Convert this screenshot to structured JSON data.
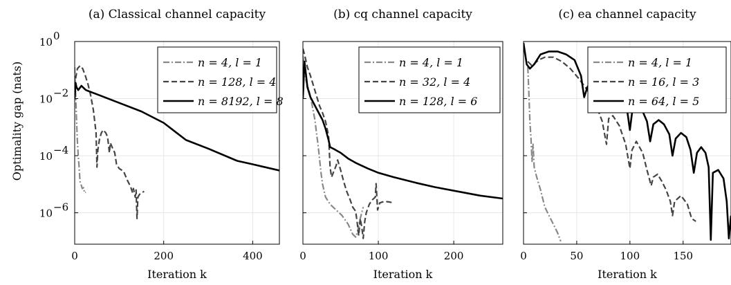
{
  "y_axis_label": "Optimality gap (nats)",
  "y_ticks": [
    {
      "value": 0,
      "label": "10"
    },
    {
      "value": -2,
      "label": "10"
    },
    {
      "value": -4,
      "label": "10"
    },
    {
      "value": -6,
      "label": "10"
    }
  ],
  "y_tick_exponents": [
    "0",
    "−2",
    "−4",
    "−6"
  ],
  "style": {
    "colors": {
      "light": "#888888",
      "mid": "#444444",
      "dark": "#000000",
      "grid": "#e6e6e6"
    }
  },
  "chart_data": [
    {
      "type": "line",
      "title": "(a) Classical channel capacity",
      "xlabel": "Iteration k",
      "ylabel": "Optimality gap (nats)",
      "yscale": "log",
      "xlim": [
        0,
        460
      ],
      "ylim_log10": [
        -7.1,
        0
      ],
      "xticks": [
        0,
        200,
        400
      ],
      "grid": true,
      "legend_position": "top-right",
      "series": [
        {
          "name": "n = 4, l = 1",
          "style": "dashdot",
          "color": "light",
          "points": [
            [
              0,
              -0.9
            ],
            [
              2,
              -1.8
            ],
            [
              4,
              -2.7
            ],
            [
              6,
              -3.5
            ],
            [
              8,
              -4.0
            ],
            [
              10,
              -4.4
            ],
            [
              12,
              -4.9
            ],
            [
              15,
              -5.05
            ],
            [
              17,
              -5.15
            ],
            [
              20,
              -5.12
            ],
            [
              22,
              -5.3
            ],
            [
              25,
              -5.28
            ]
          ]
        },
        {
          "name": "n = 128, l = 4",
          "style": "dashed",
          "color": "mid",
          "points": [
            [
              2,
              -1.3
            ],
            [
              6,
              -0.95
            ],
            [
              12,
              -0.85
            ],
            [
              18,
              -0.95
            ],
            [
              24,
              -1.2
            ],
            [
              30,
              -1.5
            ],
            [
              36,
              -1.9
            ],
            [
              42,
              -2.4
            ],
            [
              48,
              -3.2
            ],
            [
              50,
              -4.4
            ],
            [
              52,
              -3.8
            ],
            [
              56,
              -3.4
            ],
            [
              60,
              -3.2
            ],
            [
              64,
              -3.1
            ],
            [
              70,
              -3.2
            ],
            [
              74,
              -3.35
            ],
            [
              78,
              -3.9
            ],
            [
              80,
              -3.55
            ],
            [
              84,
              -3.7
            ],
            [
              90,
              -3.9
            ],
            [
              94,
              -4.3
            ],
            [
              100,
              -4.45
            ],
            [
              110,
              -4.55
            ],
            [
              118,
              -4.85
            ],
            [
              126,
              -5.1
            ],
            [
              130,
              -5.3
            ],
            [
              132,
              -5.15
            ],
            [
              136,
              -5.45
            ],
            [
              138,
              -5.2
            ],
            [
              140,
              -6.2
            ],
            [
              142,
              -5.45
            ],
            [
              146,
              -5.35
            ],
            [
              150,
              -5.3
            ],
            [
              156,
              -5.25
            ]
          ]
        },
        {
          "name": "n = 8192, l = 8",
          "style": "solid",
          "color": "dark",
          "points": [
            [
              0,
              -2.0
            ],
            [
              2,
              -1.45
            ],
            [
              4,
              -1.6
            ],
            [
              8,
              -1.7
            ],
            [
              15,
              -1.55
            ],
            [
              25,
              -1.7
            ],
            [
              50,
              -1.85
            ],
            [
              100,
              -2.15
            ],
            [
              150,
              -2.45
            ],
            [
              200,
              -2.85
            ],
            [
              250,
              -3.45
            ],
            [
              300,
              -3.75
            ],
            [
              365,
              -4.18
            ],
            [
              400,
              -4.3
            ],
            [
              460,
              -4.52
            ]
          ]
        }
      ]
    },
    {
      "type": "line",
      "title": "(b) cq channel capacity",
      "xlabel": "Iteration k",
      "yscale": "log",
      "xlim": [
        0,
        265
      ],
      "ylim_log10": [
        -7.1,
        0
      ],
      "xticks": [
        0,
        100,
        200
      ],
      "grid": true,
      "legend_position": "top-right",
      "series": [
        {
          "name": "n = 4, l = 1",
          "style": "dashdot",
          "color": "light",
          "points": [
            [
              0,
              -0.5
            ],
            [
              2,
              -0.9
            ],
            [
              4,
              -1.35
            ],
            [
              8,
              -1.7
            ],
            [
              12,
              -2.2
            ],
            [
              16,
              -2.75
            ],
            [
              18,
              -3.2
            ],
            [
              20,
              -3.6
            ],
            [
              22,
              -4.1
            ],
            [
              24,
              -4.6
            ],
            [
              26,
              -5.0
            ],
            [
              30,
              -5.45
            ],
            [
              36,
              -5.7
            ],
            [
              44,
              -5.9
            ],
            [
              52,
              -6.1
            ],
            [
              60,
              -6.4
            ],
            [
              66,
              -6.75
            ],
            [
              70,
              -6.85
            ],
            [
              72,
              -6.7
            ],
            [
              76,
              -6.2
            ],
            [
              80,
              -5.8
            ]
          ]
        },
        {
          "name": "n = 32, l = 4",
          "style": "dashed",
          "color": "mid",
          "points": [
            [
              0,
              -0.25
            ],
            [
              3,
              -0.55
            ],
            [
              6,
              -0.9
            ],
            [
              10,
              -1.2
            ],
            [
              14,
              -1.55
            ],
            [
              18,
              -1.9
            ],
            [
              22,
              -2.25
            ],
            [
              26,
              -2.5
            ],
            [
              30,
              -2.8
            ],
            [
              34,
              -3.3
            ],
            [
              36,
              -4.4
            ],
            [
              38,
              -4.75
            ],
            [
              44,
              -4.35
            ],
            [
              46,
              -4.15
            ],
            [
              50,
              -4.5
            ],
            [
              54,
              -4.9
            ],
            [
              58,
              -5.25
            ],
            [
              62,
              -5.5
            ],
            [
              66,
              -5.8
            ],
            [
              70,
              -5.95
            ],
            [
              72,
              -6.35
            ],
            [
              74,
              -6.8
            ],
            [
              76,
              -6.2
            ],
            [
              78,
              -6.5
            ],
            [
              80,
              -6.9
            ],
            [
              82,
              -6.3
            ],
            [
              84,
              -6.0
            ],
            [
              88,
              -5.7
            ],
            [
              92,
              -5.55
            ],
            [
              96,
              -5.45
            ],
            [
              97,
              -4.98
            ],
            [
              99,
              -5.9
            ],
            [
              102,
              -5.65
            ],
            [
              108,
              -5.6
            ],
            [
              114,
              -5.62
            ],
            [
              120,
              -5.65
            ]
          ]
        },
        {
          "name": "n = 128, l = 6",
          "style": "solid",
          "color": "dark",
          "points": [
            [
              0,
              -2.0
            ],
            [
              2,
              -0.7
            ],
            [
              4,
              -1.15
            ],
            [
              6,
              -1.6
            ],
            [
              10,
              -1.95
            ],
            [
              14,
              -2.15
            ],
            [
              18,
              -2.35
            ],
            [
              22,
              -2.55
            ],
            [
              26,
              -2.75
            ],
            [
              30,
              -3.05
            ],
            [
              34,
              -3.45
            ],
            [
              36,
              -3.7
            ],
            [
              40,
              -3.75
            ],
            [
              50,
              -3.9
            ],
            [
              60,
              -4.1
            ],
            [
              70,
              -4.25
            ],
            [
              86,
              -4.45
            ],
            [
              100,
              -4.6
            ],
            [
              120,
              -4.75
            ],
            [
              150,
              -4.95
            ],
            [
              175,
              -5.1
            ],
            [
              205,
              -5.25
            ],
            [
              235,
              -5.4
            ],
            [
              265,
              -5.5
            ]
          ]
        }
      ]
    },
    {
      "type": "line",
      "title": "(c) ea channel capacity",
      "xlabel": "Iteration k",
      "yscale": "log",
      "xlim": [
        0,
        195
      ],
      "ylim_log10": [
        -7.1,
        0
      ],
      "xticks": [
        0,
        50,
        100,
        150
      ],
      "grid": true,
      "legend_position": "top-right",
      "series": [
        {
          "name": "n = 4, l = 1",
          "style": "dashdot",
          "color": "light",
          "points": [
            [
              4,
              -0.9
            ],
            [
              5,
              -1.8
            ],
            [
              6,
              -2.8
            ],
            [
              7,
              -3.4
            ],
            [
              8,
              -4.2
            ],
            [
              9,
              -3.6
            ],
            [
              10,
              -4.4
            ],
            [
              12,
              -4.7
            ],
            [
              14,
              -4.95
            ],
            [
              16,
              -5.2
            ],
            [
              18,
              -5.5
            ],
            [
              20,
              -5.8
            ],
            [
              24,
              -6.1
            ],
            [
              28,
              -6.4
            ],
            [
              32,
              -6.7
            ],
            [
              35,
              -7.0
            ]
          ]
        },
        {
          "name": "n = 16, l = 3",
          "style": "dashed",
          "color": "mid",
          "points": [
            [
              4,
              -0.7
            ],
            [
              8,
              -0.85
            ],
            [
              14,
              -0.65
            ],
            [
              20,
              -0.55
            ],
            [
              28,
              -0.55
            ],
            [
              36,
              -0.7
            ],
            [
              44,
              -0.95
            ],
            [
              52,
              -1.3
            ],
            [
              60,
              -1.7
            ],
            [
              68,
              -2.2
            ],
            [
              74,
              -2.8
            ],
            [
              78,
              -3.6
            ],
            [
              80,
              -2.7
            ],
            [
              84,
              -2.6
            ],
            [
              90,
              -2.95
            ],
            [
              96,
              -3.6
            ],
            [
              100,
              -4.45
            ],
            [
              102,
              -3.8
            ],
            [
              106,
              -3.5
            ],
            [
              112,
              -3.9
            ],
            [
              116,
              -4.5
            ],
            [
              120,
              -5.05
            ],
            [
              122,
              -4.75
            ],
            [
              126,
              -4.65
            ],
            [
              130,
              -4.9
            ],
            [
              134,
              -5.2
            ],
            [
              138,
              -5.6
            ],
            [
              140,
              -6.1
            ],
            [
              142,
              -5.6
            ],
            [
              148,
              -5.4
            ],
            [
              154,
              -5.7
            ],
            [
              158,
              -6.2
            ],
            [
              162,
              -6.3
            ]
          ]
        },
        {
          "name": "n = 64, l = 5",
          "style": "solid",
          "color": "dark",
          "points": [
            [
              0,
              -0.05
            ],
            [
              3,
              -0.8
            ],
            [
              6,
              -0.95
            ],
            [
              10,
              -0.8
            ],
            [
              16,
              -0.45
            ],
            [
              24,
              -0.35
            ],
            [
              32,
              -0.35
            ],
            [
              40,
              -0.45
            ],
            [
              48,
              -0.65
            ],
            [
              54,
              -1.2
            ],
            [
              57,
              -1.95
            ],
            [
              60,
              -1.6
            ],
            [
              66,
              -1.25
            ],
            [
              72,
              -1.3
            ],
            [
              77,
              -1.6
            ],
            [
              80,
              -2.3
            ],
            [
              82,
              -1.9
            ],
            [
              86,
              -1.75
            ],
            [
              92,
              -1.9
            ],
            [
              97,
              -2.3
            ],
            [
              100,
              -3.1
            ],
            [
              102,
              -2.5
            ],
            [
              106,
              -2.3
            ],
            [
              112,
              -2.45
            ],
            [
              116,
              -2.8
            ],
            [
              119,
              -3.5
            ],
            [
              122,
              -2.9
            ],
            [
              127,
              -2.75
            ],
            [
              132,
              -2.9
            ],
            [
              137,
              -3.25
            ],
            [
              140,
              -4.0
            ],
            [
              143,
              -3.4
            ],
            [
              148,
              -3.2
            ],
            [
              153,
              -3.35
            ],
            [
              157,
              -3.8
            ],
            [
              160,
              -4.6
            ],
            [
              163,
              -3.9
            ],
            [
              167,
              -3.7
            ],
            [
              171,
              -3.9
            ],
            [
              174,
              -4.4
            ],
            [
              176,
              -6.95
            ],
            [
              178,
              -4.6
            ],
            [
              183,
              -4.5
            ],
            [
              188,
              -4.8
            ],
            [
              191,
              -5.6
            ],
            [
              193,
              -6.9
            ],
            [
              195,
              -6.1
            ]
          ]
        }
      ]
    }
  ]
}
